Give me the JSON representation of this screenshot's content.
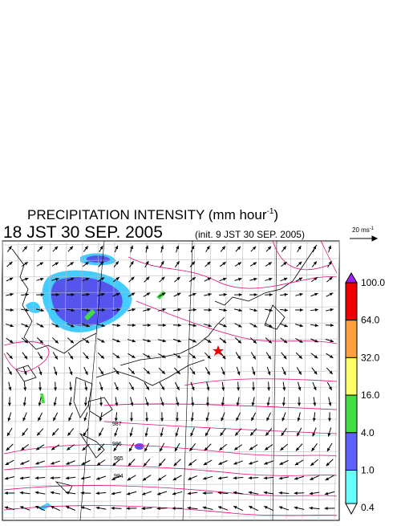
{
  "header": {
    "title": "PRECIPITATION INTENSITY (mm hour",
    "title_sup": "-1",
    "title_end": ")",
    "valid_time": "18 JST 30 SEP. 2005",
    "init_time": "(init. 9 JST 30 SEP. 2005)"
  },
  "wind_scale": {
    "label": "20 ms",
    "label_sup": "-1"
  },
  "color_scale": {
    "labels": [
      "100.0",
      "64.0",
      "32.0",
      "16.0",
      "4.0",
      "1.0",
      "0.4"
    ],
    "colors": [
      "#a020f0",
      "#ee0000",
      "#ffa040",
      "#ffff66",
      "#44dd44",
      "#6060ff",
      "#66ffff",
      "#ffffff"
    ]
  },
  "isobar_labels": [
    "987",
    "986",
    "985",
    "984"
  ]
}
